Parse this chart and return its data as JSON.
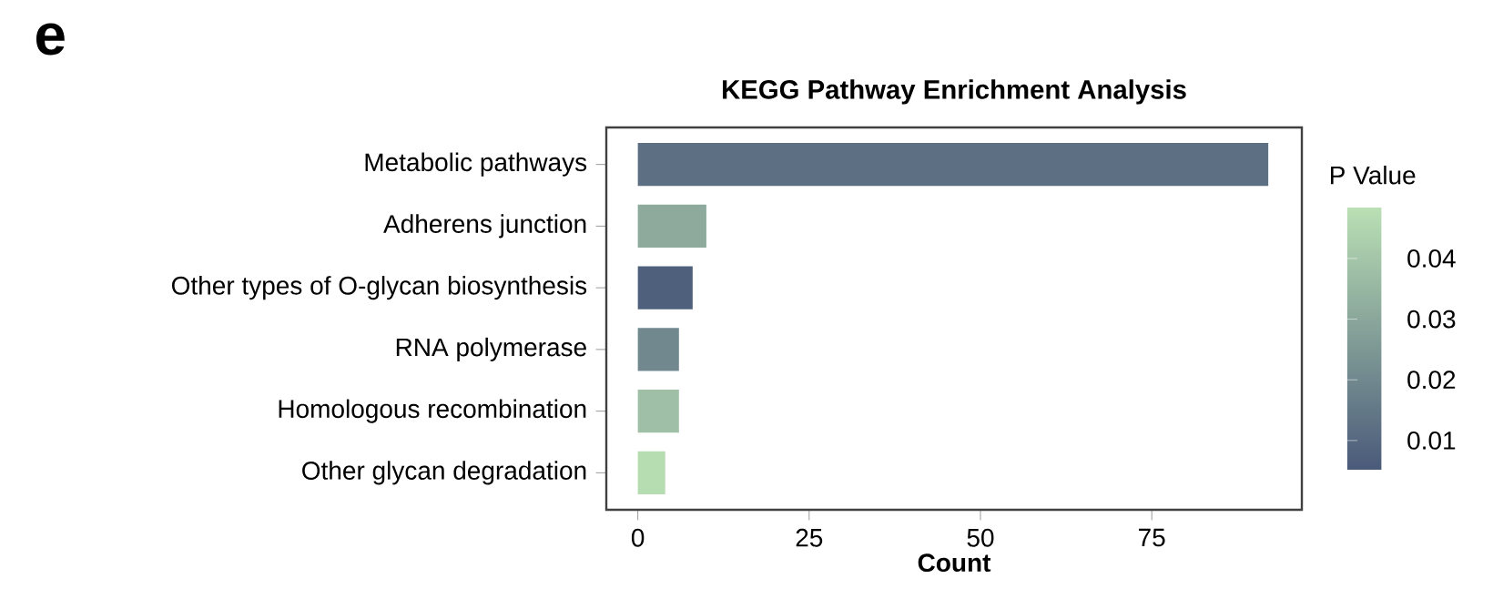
{
  "chart_data": {
    "type": "bar",
    "orientation": "horizontal",
    "title": "KEGG Pathway Enrichment Analysis",
    "xlabel": "Count",
    "categories": [
      "Metabolic pathways",
      "Adherens junction",
      "Other types of O-glycan biosynthesis",
      "RNA polymerase",
      "Homologous recombination",
      "Other glycan degradation"
    ],
    "values": [
      92,
      10,
      8,
      6,
      6,
      4
    ],
    "cvalues": [
      0.012,
      0.031,
      0.007,
      0.02,
      0.038,
      0.047
    ],
    "clabel": "P Value",
    "clim": [
      0.0052,
      0.0484
    ],
    "cticks": [
      0.01,
      0.02,
      0.03,
      0.04
    ],
    "xlim": [
      -4.6,
      96.9
    ],
    "xticks": [
      0,
      25,
      50,
      75
    ],
    "grid": false,
    "annotations": [
      "e"
    ]
  }
}
